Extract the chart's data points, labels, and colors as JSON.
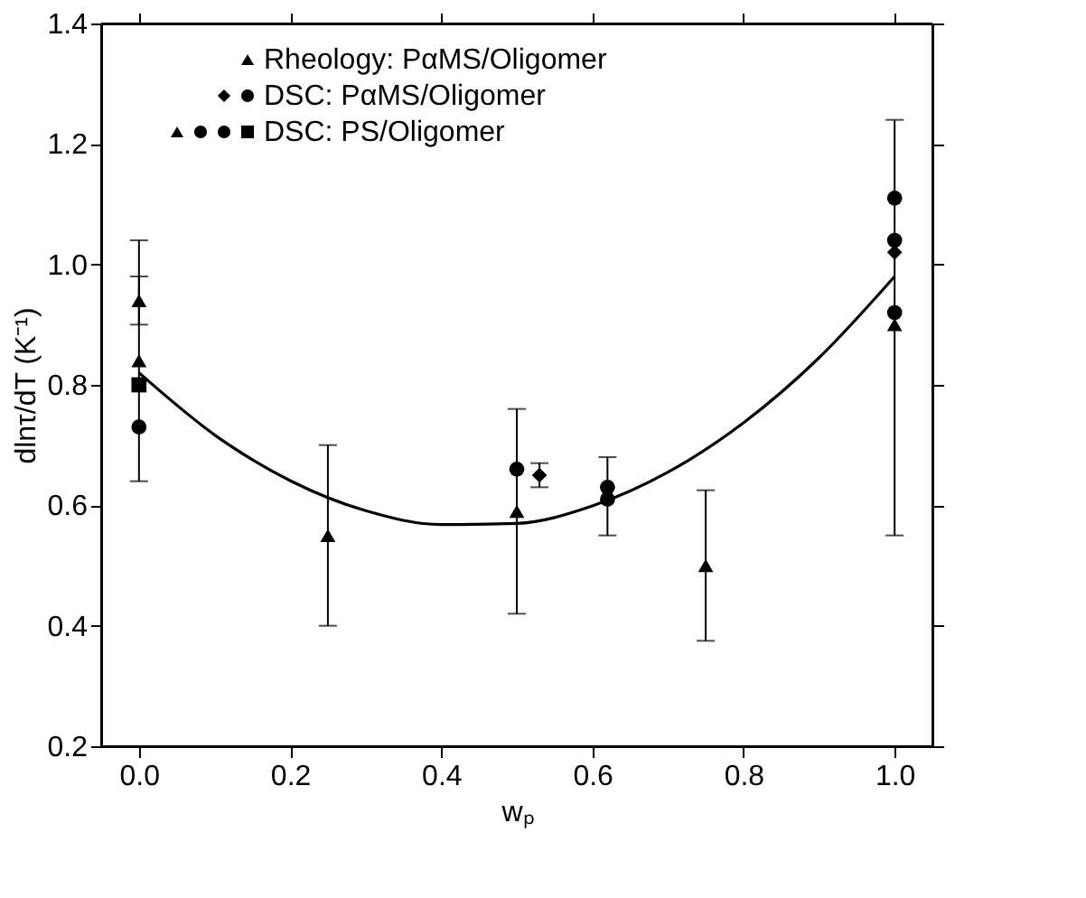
{
  "chart_data": {
    "type": "scatter",
    "xlabel": "wₚ",
    "ylabel": "dlnτ/dT (K⁻¹)",
    "xlim": [
      -0.05,
      1.05
    ],
    "ylim": [
      0.2,
      1.4
    ],
    "xticks": [
      {
        "value": 0,
        "label": "0.0"
      },
      0.2,
      0.4,
      0.6,
      0.8,
      {
        "value": 1,
        "label": "1.0"
      }
    ],
    "yticks": [
      0.2,
      0.4,
      0.6,
      0.8,
      {
        "value": 1,
        "label": "1.0"
      },
      1.2,
      1.4
    ],
    "grid": false,
    "legend": "top left",
    "series": [
      {
        "name": "Rheology: PαMS/Oligomer",
        "color": "#000000",
        "marker": "triangle",
        "x": [
          0,
          0.25,
          0.5,
          0.75,
          1.0
        ],
        "values": [
          0.84,
          0.55,
          0.59,
          0.5,
          0.9
        ],
        "errors": [
          [
            0.64,
            1.04
          ],
          [
            0.4,
            0.7
          ],
          [
            0.42,
            0.76
          ],
          [
            0.375,
            0.625
          ],
          [
            0.55,
            1.24
          ]
        ]
      },
      {
        "name": "DSC: PαMS/Oligomer",
        "color": "#000000",
        "marker": "circle",
        "x": [
          0,
          0.5,
          1.0
        ],
        "values": [
          0.73,
          0.66,
          1.04
        ]
      },
      {
        "color": "#000000",
        "marker": "diamond",
        "x": [
          0.53,
          1.0
        ],
        "values": [
          0.65,
          1.02
        ],
        "errors": [
          [
            0.63,
            0.67
          ],
          null
        ]
      },
      {
        "name": "DSC: PS/Oligomer",
        "color": "#000000",
        "marker": "square",
        "x": [
          0
        ],
        "values": [
          0.8
        ]
      },
      {
        "color": "#000000",
        "marker": "circle",
        "x": [
          0.62,
          1.0
        ],
        "values": [
          0.61,
          1.11
        ],
        "errors": [
          [
            0.55,
            0.68
          ],
          null
        ]
      },
      {
        "color": "#000000",
        "marker": "circle",
        "x": [
          0.62,
          1.0
        ],
        "values": [
          0.63,
          0.92
        ]
      },
      {
        "color": "#000000",
        "marker": "triangle",
        "x": [
          0
        ],
        "values": [
          0.94
        ],
        "errors": [
          [
            0.9,
            0.98
          ]
        ]
      },
      {
        "type": "line",
        "color": "#000000",
        "marker": "none",
        "line_style": "solid",
        "x": [
          0,
          0.1,
          0.2,
          0.3,
          0.4,
          0.5,
          0.6,
          0.7,
          0.8,
          0.9,
          1.0
        ],
        "values": [
          0.82,
          0.717,
          0.641,
          0.591,
          0.568,
          0.57,
          0.599,
          0.655,
          0.737,
          0.845,
          0.98
        ]
      }
    ]
  }
}
